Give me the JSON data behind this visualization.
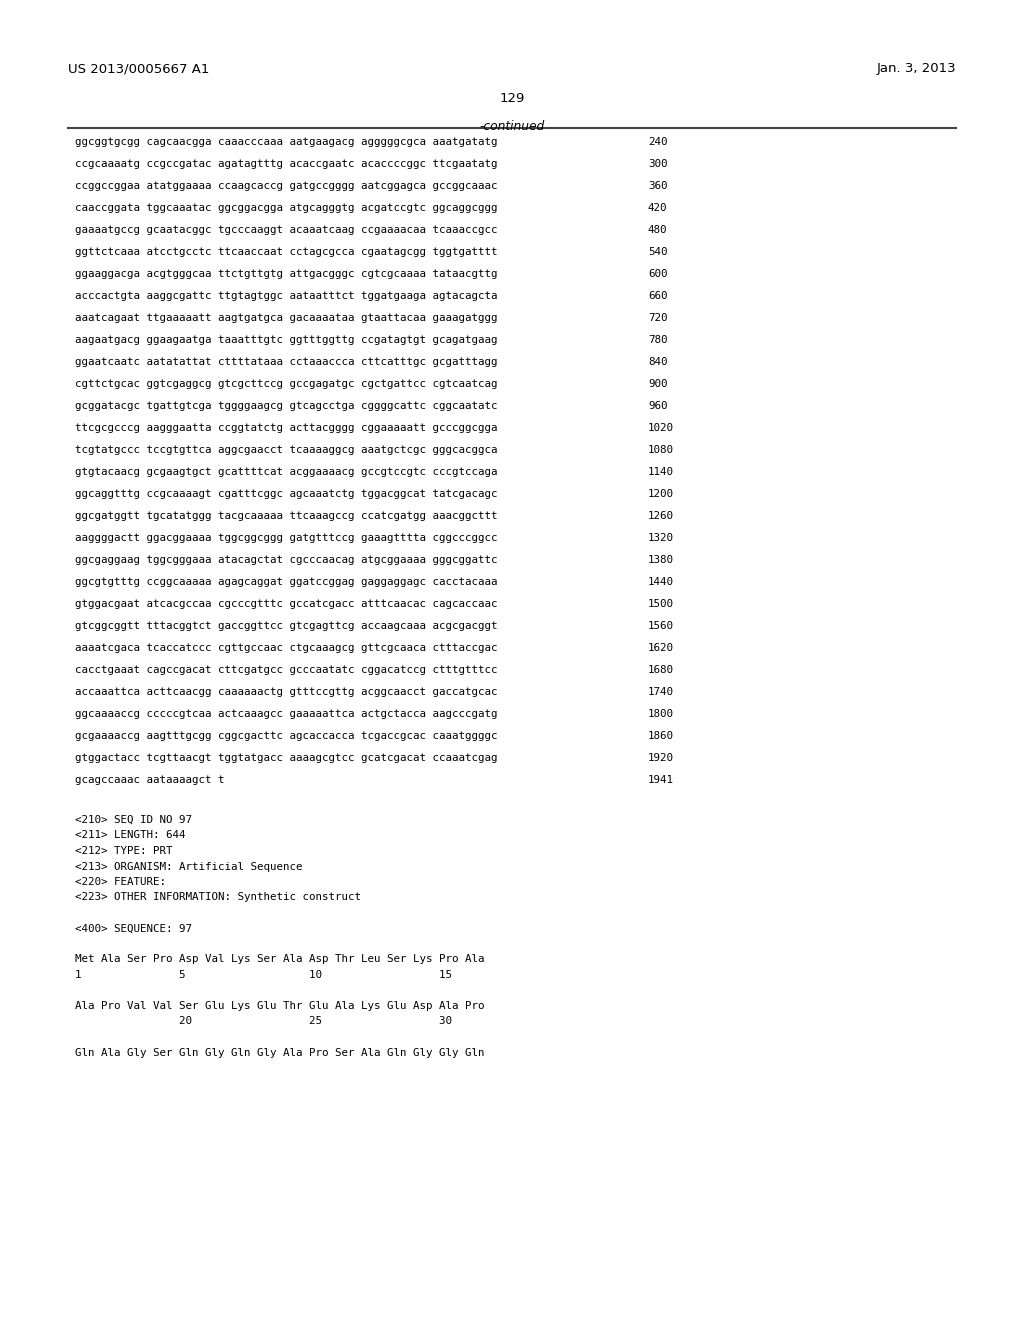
{
  "header_left": "US 2013/0005667 A1",
  "header_right": "Jan. 3, 2013",
  "page_number": "129",
  "continued_label": "-continued",
  "background_color": "#ffffff",
  "text_color": "#000000",
  "sequence_lines": [
    [
      "ggcggtgcgg cagcaacgga caaacccaaa aatgaagacg agggggcgca aaatgatatg",
      "240"
    ],
    [
      "ccgcaaaatg ccgccgatac agatagtttg acaccgaatc acaccccggc ttcgaatatg",
      "300"
    ],
    [
      "ccggccggaa atatggaaaa ccaagcaccg gatgccgggg aatcggagca gccggcaaac",
      "360"
    ],
    [
      "caaccggata tggcaaatac ggcggacgga atgcagggtg acgatccgtc ggcaggcggg",
      "420"
    ],
    [
      "gaaaatgccg gcaatacggc tgcccaaggt acaaatcaag ccgaaaacaa tcaaaccgcc",
      "480"
    ],
    [
      "ggttctcaaa atcctgcctc ttcaaccaat cctagcgcca cgaatagcgg tggtgatttt",
      "540"
    ],
    [
      "ggaaggacga acgtgggcaa ttctgttgtg attgacgggc cgtcgcaaaa tataacgttg",
      "600"
    ],
    [
      "acccactgta aaggcgattc ttgtagtggc aataatttct tggatgaaga agtacagcta",
      "660"
    ],
    [
      "aaatcagaat ttgaaaaatt aagtgatgca gacaaaataa gtaattacaa gaaagatggg",
      "720"
    ],
    [
      "aagaatgacg ggaagaatga taaatttgtc ggtttggttg ccgatagtgt gcagatgaag",
      "780"
    ],
    [
      "ggaatcaatc aatatattat cttttataaa cctaaaccca cttcatttgc gcgatttagg",
      "840"
    ],
    [
      "cgttctgcac ggtcgaggcg gtcgcttccg gccgagatgc cgctgattcc cgtcaatcag",
      "900"
    ],
    [
      "gcggatacgc tgattgtcga tggggaagcg gtcagcctga cggggcattc cggcaatatc",
      "960"
    ],
    [
      "ttcgcgcccg aagggaatta ccggtatctg acttacgggg cggaaaaatt gcccggcgga",
      "1020"
    ],
    [
      "tcgtatgccc tccgtgttca aggcgaacct tcaaaaggcg aaatgctcgc gggcacggca",
      "1080"
    ],
    [
      "gtgtacaacg gcgaagtgct gcattttcat acggaaaacg gccgtccgtc cccgtccaga",
      "1140"
    ],
    [
      "ggcaggtttg ccgcaaaagt cgatttcggc agcaaatctg tggacggcat tatcgacagc",
      "1200"
    ],
    [
      "ggcgatggtt tgcatatggg tacgcaaaaa ttcaaagccg ccatcgatgg aaacggcttt",
      "1260"
    ],
    [
      "aaggggactt ggacggaaaa tggcggcggg gatgtttccg gaaagtttta cggcccggcc",
      "1320"
    ],
    [
      "ggcgaggaag tggcgggaaa atacagctat cgcccaacag atgcggaaaa gggcggattc",
      "1380"
    ],
    [
      "ggcgtgtttg ccggcaaaaa agagcaggat ggatccggag gaggaggagc cacctacaaa",
      "1440"
    ],
    [
      "gtggacgaat atcacgccaa cgcccgtttc gccatcgacc atttcaacac cagcaccaac",
      "1500"
    ],
    [
      "gtcggcggtt tttacggtct gaccggttcc gtcgagttcg accaagcaaa acgcgacggt",
      "1560"
    ],
    [
      "aaaatcgaca tcaccatccc cgttgccaac ctgcaaagcg gttcgcaaca ctttaccgac",
      "1620"
    ],
    [
      "cacctgaaat cagccgacat cttcgatgcc gcccaatatc cggacatccg ctttgtttcc",
      "1680"
    ],
    [
      "accaaattca acttcaacgg caaaaaactg gtttccgttg acggcaacct gaccatgcac",
      "1740"
    ],
    [
      "ggcaaaaccg cccccgtcaa actcaaagcc gaaaaattca actgctacca aagcccgatg",
      "1800"
    ],
    [
      "gcgaaaaccg aagtttgcgg cggcgacttc agcaccacca tcgaccgcac caaatggggc",
      "1860"
    ],
    [
      "gtggactacc tcgttaacgt tggtatgacc aaaagcgtcc gcatcgacat ccaaatcgag",
      "1920"
    ],
    [
      "gcagccaaac aataaaagct t",
      "1941"
    ]
  ],
  "annotation_lines": [
    "<210> SEQ ID NO 97",
    "<211> LENGTH: 644",
    "<212> TYPE: PRT",
    "<213> ORGANISM: Artificial Sequence",
    "<220> FEATURE:",
    "<223> OTHER INFORMATION: Synthetic construct",
    "",
    "<400> SEQUENCE: 97",
    "",
    "Met Ala Ser Pro Asp Val Lys Ser Ala Asp Thr Leu Ser Lys Pro Ala",
    "1               5                   10                  15",
    "",
    "Ala Pro Val Val Ser Glu Lys Glu Thr Glu Ala Lys Glu Asp Ala Pro",
    "                20                  25                  30",
    "",
    "Gln Ala Gly Ser Gln Gly Gln Gly Ala Pro Ser Ala Gln Gly Gly Gln"
  ]
}
